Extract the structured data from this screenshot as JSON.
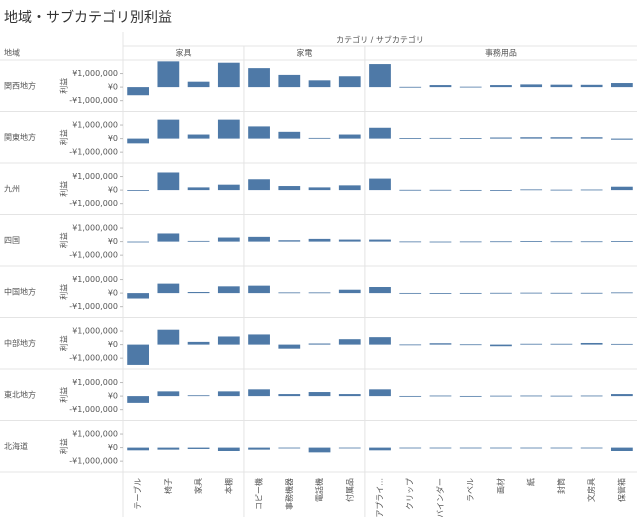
{
  "chart_data": {
    "type": "bar",
    "title": "地域・サブカテゴリ別利益",
    "column_header": "カテゴリ / サブカテゴリ",
    "row_header": "地域",
    "y_label": "利益",
    "color": "#4e79a7",
    "groups": [
      {
        "name": "家具",
        "categories": [
          "テーブル",
          "椅子",
          "家具",
          "本棚"
        ]
      },
      {
        "name": "家電",
        "categories": [
          "コピー機",
          "事務機器",
          "電話機",
          "付属品"
        ]
      },
      {
        "name": "事務用品",
        "categories": [
          "アプライ...",
          "クリップ",
          "バインダー",
          "ラベル",
          "画材",
          "紙",
          "封筒",
          "文房具",
          "保管箱"
        ]
      }
    ],
    "ylim": [
      -1800000,
      2000000
    ],
    "yticks": [
      {
        "value": 1000000,
        "label": "¥1,000,000"
      },
      {
        "value": 0,
        "label": "¥0"
      },
      {
        "value": -1000000,
        "label": "-¥1,000,000"
      }
    ],
    "series": [
      {
        "name": "関西地方",
        "values": [
          -600000,
          1900000,
          400000,
          1800000,
          1400000,
          900000,
          500000,
          800000,
          1700000,
          20000,
          150000,
          30000,
          150000,
          200000,
          180000,
          170000,
          300000
        ]
      },
      {
        "name": "関東地方",
        "values": [
          -350000,
          1400000,
          300000,
          1400000,
          900000,
          500000,
          50000,
          300000,
          800000,
          30000,
          50000,
          30000,
          80000,
          100000,
          100000,
          100000,
          -80000
        ]
      },
      {
        "name": "九州",
        "values": [
          -30000,
          1300000,
          200000,
          400000,
          800000,
          300000,
          200000,
          350000,
          850000,
          20000,
          20000,
          10000,
          -40000,
          50000,
          30000,
          40000,
          250000
        ]
      },
      {
        "name": "四国",
        "values": [
          -50000,
          600000,
          50000,
          300000,
          350000,
          100000,
          200000,
          150000,
          150000,
          10000,
          -30000,
          10000,
          20000,
          30000,
          20000,
          20000,
          30000
        ]
      },
      {
        "name": "中国地方",
        "values": [
          -400000,
          700000,
          80000,
          500000,
          550000,
          50000,
          50000,
          250000,
          450000,
          10000,
          -20000,
          10000,
          20000,
          30000,
          20000,
          20000,
          50000
        ]
      },
      {
        "name": "中部地方",
        "values": [
          -1500000,
          1100000,
          200000,
          600000,
          750000,
          -300000,
          80000,
          400000,
          550000,
          10000,
          100000,
          20000,
          -120000,
          60000,
          60000,
          120000,
          50000
        ]
      },
      {
        "name": "東北地方",
        "values": [
          -500000,
          350000,
          60000,
          350000,
          500000,
          150000,
          300000,
          150000,
          500000,
          10000,
          40000,
          10000,
          30000,
          40000,
          30000,
          40000,
          150000
        ]
      },
      {
        "name": "北海道",
        "values": [
          -200000,
          -150000,
          -100000,
          -250000,
          -150000,
          -60000,
          -350000,
          -30000,
          -200000,
          -10000,
          -20000,
          -10000,
          -30000,
          -20000,
          -20000,
          -20000,
          -250000
        ]
      }
    ]
  }
}
